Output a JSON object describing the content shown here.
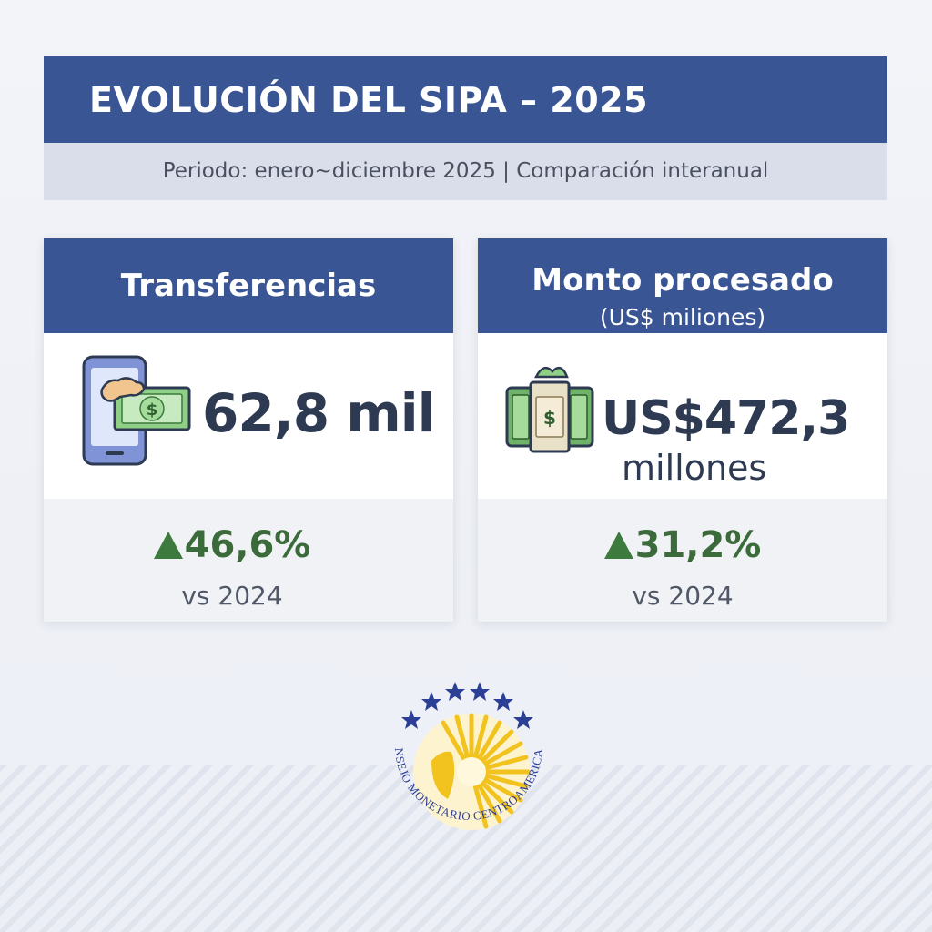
{
  "header": {
    "title": "EVOLUCIÓN DEL SIPA – 2025",
    "subtitle": "Periodo: enero~diciembre 2025 | Comparación interanual"
  },
  "cards": [
    {
      "title": "Transferencias",
      "value": "62,8 mil",
      "growth": "46,6%",
      "growth_direction": "up",
      "comparison": "vs 2024",
      "icon": "phone-payment-icon"
    },
    {
      "title": "Monto procesado",
      "subtitle": "(US$ miliones)",
      "value": "US$472,3",
      "unit": "millones",
      "growth": "31,2%",
      "growth_direction": "up",
      "comparison": "vs 2024",
      "icon": "money-stack-icon"
    }
  ],
  "seal": {
    "text": "CONSEJO MONETARIO CENTROAMERICANO",
    "icon": "sun-seal-icon"
  },
  "colors": {
    "header": "#3a5594",
    "subheader": "#dadeea",
    "growth": "#3b6b3a",
    "text_dark": "#2e3a52",
    "seal_yellow": "#f2c21f",
    "seal_blue": "#2c3f96"
  }
}
